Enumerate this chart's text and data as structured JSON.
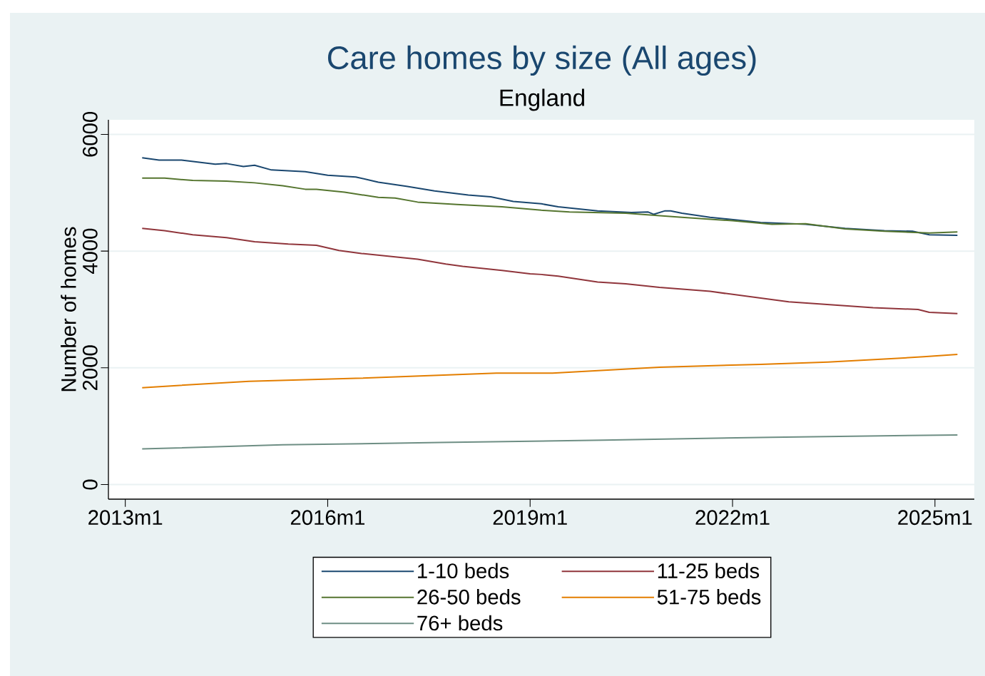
{
  "chart_data": {
    "type": "line",
    "title": "Care homes by size (All ages)",
    "subtitle": "England",
    "ylabel": "Number of homes",
    "xlim": [
      "2012-10",
      "2025-08"
    ],
    "ylim": [
      -250,
      6250
    ],
    "xticks": [
      {
        "value": "2013-01",
        "label": "2013m1"
      },
      {
        "value": "2016-01",
        "label": "2016m1"
      },
      {
        "value": "2019-01",
        "label": "2019m1"
      },
      {
        "value": "2022-01",
        "label": "2022m1"
      },
      {
        "value": "2025-01",
        "label": "2025m1"
      }
    ],
    "yticks": [
      0,
      2000,
      4000,
      6000
    ],
    "grid": "y",
    "legend": "bottom",
    "marker": "none",
    "line_style": "solid",
    "series": [
      {
        "name": "1-10 beds",
        "color": "#1a476f",
        "x": [
          "2013-04",
          "2013-07",
          "2013-11",
          "2014-05",
          "2014-07",
          "2014-10",
          "2014-12",
          "2015-03",
          "2015-09",
          "2016-01",
          "2016-06",
          "2016-10",
          "2017-03",
          "2017-08",
          "2018-02",
          "2018-06",
          "2018-10",
          "2019-03",
          "2019-06",
          "2020-01",
          "2020-07",
          "2020-10",
          "2020-11",
          "2021-01",
          "2021-02",
          "2021-04",
          "2021-09",
          "2022-06",
          "2023-02",
          "2023-09",
          "2024-04",
          "2024-09",
          "2024-12",
          "2025-05"
        ],
        "values": [
          5600,
          5560,
          5560,
          5490,
          5500,
          5450,
          5470,
          5390,
          5360,
          5300,
          5270,
          5180,
          5110,
          5030,
          4960,
          4930,
          4850,
          4810,
          4760,
          4690,
          4660,
          4670,
          4630,
          4690,
          4690,
          4650,
          4580,
          4490,
          4460,
          4390,
          4350,
          4340,
          4280,
          4270
        ]
      },
      {
        "name": "11-25 beds",
        "color": "#90353b",
        "x": [
          "2013-04",
          "2013-08",
          "2014-01",
          "2014-07",
          "2014-12",
          "2015-06",
          "2015-11",
          "2016-03",
          "2016-07",
          "2017-01",
          "2017-05",
          "2017-10",
          "2018-01",
          "2018-08",
          "2019-01",
          "2019-03",
          "2019-06",
          "2020-01",
          "2020-06",
          "2020-12",
          "2021-09",
          "2022-11",
          "2024-02",
          "2024-10",
          "2024-12",
          "2025-05"
        ],
        "values": [
          4390,
          4350,
          4280,
          4230,
          4160,
          4120,
          4100,
          4010,
          3960,
          3900,
          3860,
          3780,
          3740,
          3670,
          3610,
          3600,
          3570,
          3470,
          3440,
          3380,
          3310,
          3130,
          3030,
          3000,
          2950,
          2930
        ]
      },
      {
        "name": "26-50 beds",
        "color": "#55752f",
        "x": [
          "2013-04",
          "2013-08",
          "2014-01",
          "2014-07",
          "2014-12",
          "2015-05",
          "2015-09",
          "2015-11",
          "2016-04",
          "2016-10",
          "2017-01",
          "2017-05",
          "2017-12",
          "2018-08",
          "2019-03",
          "2019-08",
          "2020-06",
          "2021-04",
          "2022-01",
          "2022-08",
          "2023-02",
          "2023-09",
          "2024-04",
          "2024-12",
          "2025-05"
        ],
        "values": [
          5250,
          5250,
          5210,
          5200,
          5170,
          5120,
          5060,
          5060,
          5010,
          4920,
          4910,
          4840,
          4800,
          4760,
          4700,
          4670,
          4650,
          4580,
          4520,
          4460,
          4470,
          4380,
          4340,
          4310,
          4330
        ]
      },
      {
        "name": "51-75 beds",
        "color": "#e37e00",
        "x": [
          "2013-04",
          "2014-11",
          "2016-06",
          "2018-07",
          "2019-05",
          "2020-12",
          "2022-06",
          "2023-06",
          "2024-04",
          "2024-11",
          "2025-05"
        ],
        "values": [
          1660,
          1770,
          1820,
          1910,
          1910,
          2010,
          2060,
          2100,
          2150,
          2190,
          2230
        ]
      },
      {
        "name": "76+ beds",
        "color": "#6e8e84",
        "x": [
          "2013-04",
          "2015-05",
          "2017-09",
          "2020-02",
          "2022-08",
          "2025-05"
        ],
        "values": [
          610,
          680,
          720,
          760,
          810,
          850
        ]
      }
    ]
  }
}
